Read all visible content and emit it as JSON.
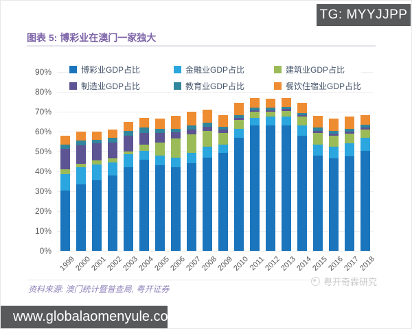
{
  "badges": {
    "tg": "TG: MYYJJPP",
    "url": "www.globalaomenyule.com"
  },
  "figure": {
    "title": "图表 5: 博彩业在澳门一家独大",
    "source": "资料来源: 澳门统计暨普查局, 粤开证券",
    "watermark": "粤开奇霖研究"
  },
  "chart_data": {
    "type": "bar",
    "stacked": true,
    "title": "博彩业在澳门一家独大",
    "xlabel": "",
    "ylabel": "",
    "ylim": [
      0,
      90
    ],
    "ytick_step": 10,
    "ytick_suffix": "%",
    "grid": true,
    "legend_position": "top",
    "categories": [
      "1999",
      "2000",
      "2001",
      "2002",
      "2003",
      "2004",
      "2005",
      "2006",
      "2007",
      "2008",
      "2009",
      "2010",
      "2011",
      "2012",
      "2013",
      "2014",
      "2015",
      "2016",
      "2017",
      "2018"
    ],
    "series": [
      {
        "name": "博彩业GDP占比",
        "color": "#1b75bc",
        "values": [
          30.5,
          33.5,
          35.5,
          38,
          42,
          46,
          43,
          42,
          44,
          47,
          49.5,
          57,
          63,
          63,
          63,
          58,
          48,
          46.5,
          47.5,
          50.5
        ]
      },
      {
        "name": "金融业GDP占比",
        "color": "#2ba6de",
        "values": [
          8,
          8.5,
          8,
          6.5,
          6.5,
          4.5,
          5,
          5,
          5.5,
          5.5,
          4,
          4.5,
          4,
          4.5,
          4.5,
          5,
          5.5,
          6,
          6.5,
          6.5
        ]
      },
      {
        "name": "建筑业GDP占比",
        "color": "#9bbb59",
        "values": [
          2.5,
          2,
          2,
          2,
          1.5,
          3,
          6.5,
          9.5,
          9,
          8,
          6,
          4.5,
          3,
          2.5,
          3,
          4.5,
          6,
          5.5,
          5,
          4
        ]
      },
      {
        "name": "制造业GDP占比",
        "color": "#5c5493",
        "values": [
          10.5,
          9,
          8.5,
          8,
          8,
          6,
          5,
          3,
          2.5,
          2,
          1.5,
          1,
          0.8,
          0.8,
          0.8,
          0.8,
          1,
          1,
          1,
          1
        ]
      },
      {
        "name": "教育业GDP占比",
        "color": "#31859c",
        "values": [
          2,
          2.5,
          2,
          2.5,
          2.5,
          2.5,
          2,
          2,
          2,
          2,
          1.5,
          1.5,
          1.2,
          1.2,
          1.2,
          1.2,
          1.5,
          1.5,
          1.5,
          1.5
        ]
      },
      {
        "name": "餐饮住宿业GDP占比",
        "color": "#ee8c32",
        "values": [
          4.5,
          4.5,
          4,
          4,
          4.5,
          5,
          5,
          6.5,
          7,
          6.5,
          6,
          6,
          5,
          4.5,
          4.5,
          5,
          6,
          6,
          6,
          5
        ]
      }
    ]
  }
}
